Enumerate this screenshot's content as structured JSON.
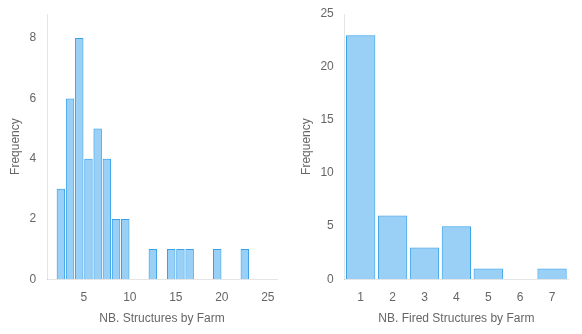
{
  "chart_data": [
    {
      "type": "histogram",
      "xlabel": "NB. Structures by Farm",
      "ylabel": "Frequency",
      "bins": [
        2,
        3,
        4,
        5,
        6,
        7,
        8,
        9,
        10,
        11,
        12,
        13,
        14,
        15,
        16,
        17,
        18,
        19,
        20,
        21,
        22,
        23,
        24,
        25
      ],
      "values": [
        3,
        6,
        8,
        4,
        5,
        4,
        2,
        2,
        0,
        0,
        1,
        0,
        1,
        1,
        1,
        0,
        0,
        1,
        0,
        0,
        1,
        0,
        0
      ],
      "xlim": [
        1,
        26
      ],
      "ylim": [
        0,
        8.8
      ],
      "xticks": [
        5,
        10,
        15,
        20,
        25
      ],
      "yticks": [
        0,
        2,
        4,
        6,
        8
      ],
      "grid": false
    },
    {
      "type": "histogram",
      "xlabel": "NB. Fired Structures by Farm",
      "ylabel": "Frequency",
      "bins": [
        0.5,
        1.5,
        2.5,
        3.5,
        4.5,
        5.5,
        6.5,
        7.5
      ],
      "values": [
        23,
        6,
        3,
        5,
        1,
        0,
        1
      ],
      "xlim": [
        0.5,
        7.5
      ],
      "ylim": [
        0,
        25
      ],
      "xticks": [
        1,
        2,
        3,
        4,
        5,
        6,
        7
      ],
      "yticks": [
        0,
        5,
        10,
        15,
        20,
        25
      ],
      "grid": false
    }
  ]
}
